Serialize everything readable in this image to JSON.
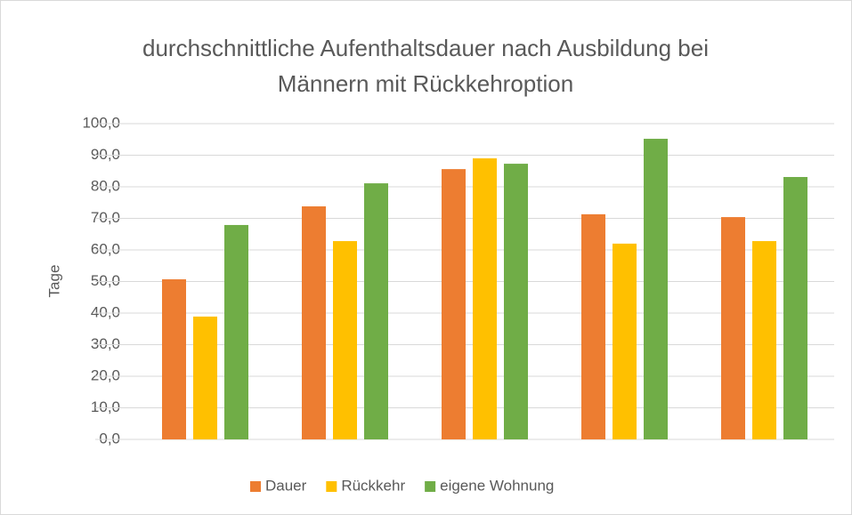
{
  "chart_data": {
    "type": "bar",
    "title": "durchschnittliche Aufenthaltsdauer nach Ausbildung bei Männern mit Rückkehroption",
    "ylabel": "Tage",
    "categories": [
      null,
      null,
      null,
      null,
      null
    ],
    "series": [
      {
        "name": "Dauer",
        "color": "#ed7d31",
        "values": [
          50.7,
          73.8,
          85.6,
          71.3,
          70.4
        ]
      },
      {
        "name": "Rückkehr",
        "color": "#ffc000",
        "values": [
          38.9,
          62.8,
          89.0,
          62.0,
          62.8
        ]
      },
      {
        "name": "eigene Wohnung",
        "color": "#70ad47",
        "values": [
          67.9,
          81.1,
          87.3,
          95.2,
          83.1
        ]
      }
    ],
    "ylim": [
      0,
      100
    ],
    "yticks": [
      {
        "value": 0,
        "label": "0,0"
      },
      {
        "value": 10,
        "label": "10,0"
      },
      {
        "value": 20,
        "label": "20,0"
      },
      {
        "value": 30,
        "label": "30,0"
      },
      {
        "value": 40,
        "label": "40,0"
      },
      {
        "value": 50,
        "label": "50,0"
      },
      {
        "value": 60,
        "label": "60,0"
      },
      {
        "value": 70,
        "label": "70,0"
      },
      {
        "value": 80,
        "label": "80,0"
      },
      {
        "value": 90,
        "label": "90,0"
      },
      {
        "value": 100,
        "label": "100,0"
      }
    ],
    "grid": true,
    "legend": "bottom"
  }
}
